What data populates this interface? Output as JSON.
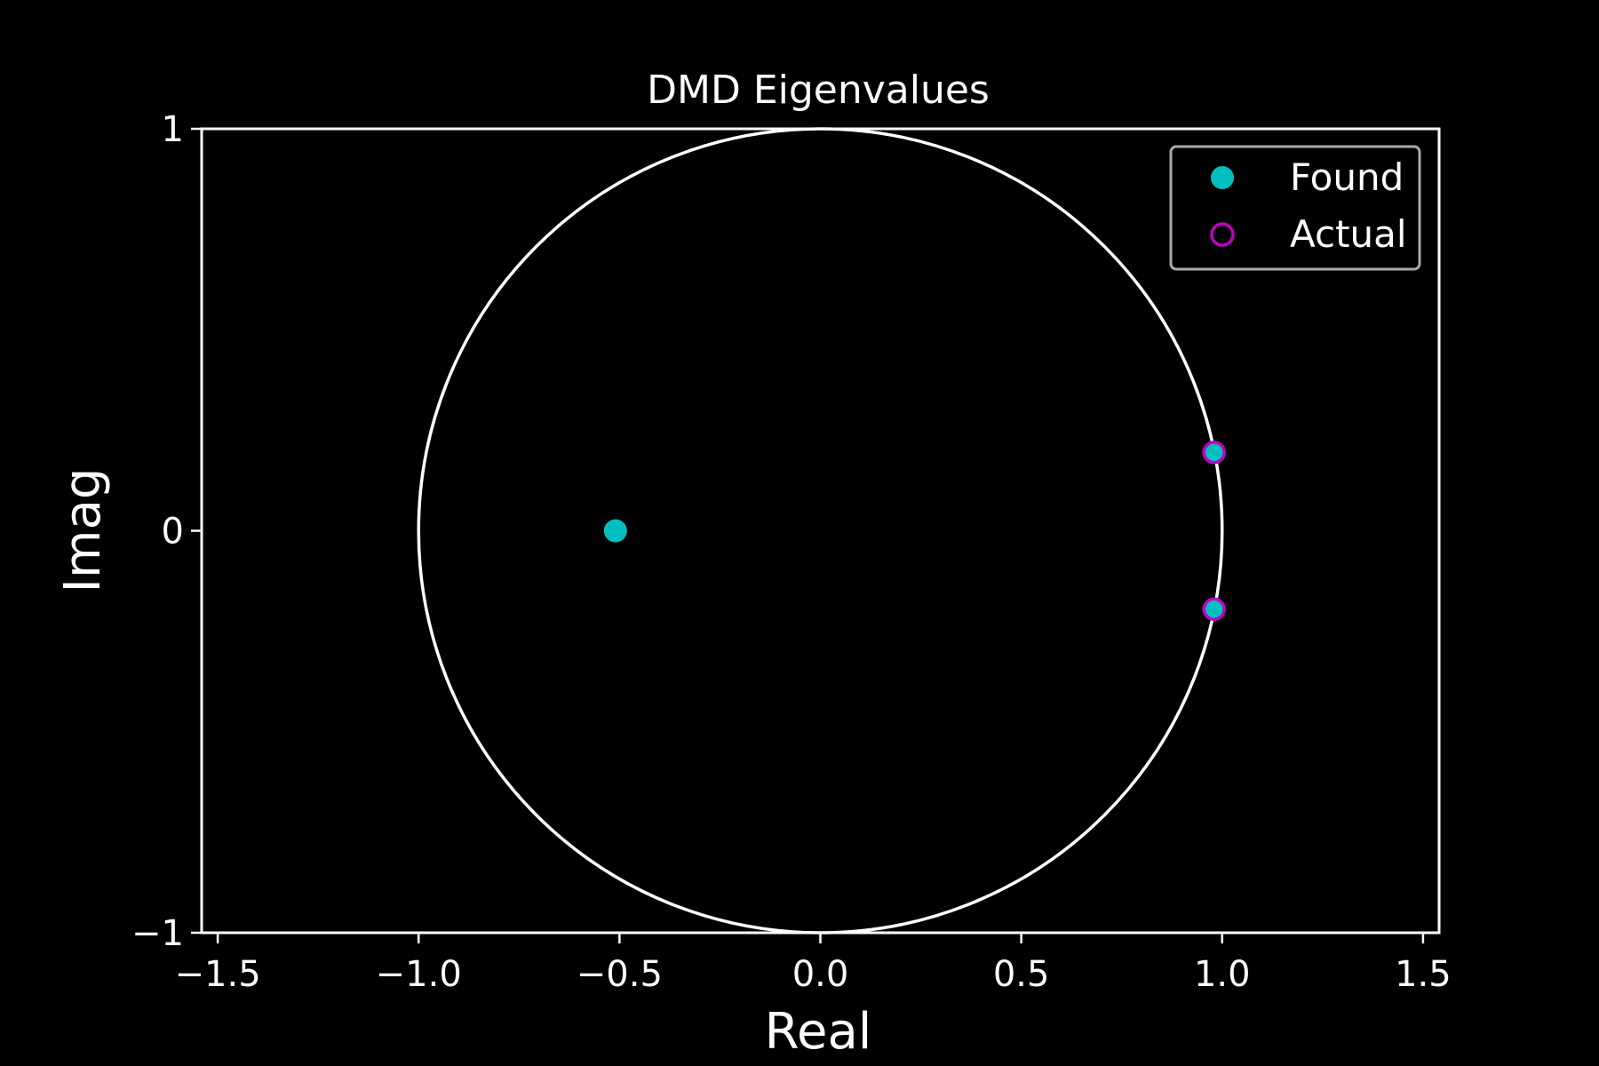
{
  "chart_data": {
    "type": "scatter",
    "title": "DMD Eigenvalues",
    "xlabel": "Real",
    "ylabel": "Imag",
    "xlim": [
      -1.54,
      1.54
    ],
    "ylim": [
      -1,
      1
    ],
    "x_ticks": [
      -1.5,
      -1.0,
      -0.5,
      0.0,
      0.5,
      1.0,
      1.5
    ],
    "x_tick_labels": [
      "−1.5",
      "−1.0",
      "−0.5",
      "0.0",
      "0.5",
      "1.0",
      "1.5"
    ],
    "y_ticks": [
      -1,
      0,
      1
    ],
    "y_tick_labels": [
      "−1",
      "0",
      "1"
    ],
    "grid": false,
    "legend_position": "top-right",
    "reference_curve": "unit circle",
    "series": [
      {
        "name": "Found",
        "marker": "filled-circle",
        "color": "#00bfbf",
        "points": [
          {
            "x": -0.51,
            "y": 0.0
          },
          {
            "x": 0.98,
            "y": 0.195
          },
          {
            "x": 0.98,
            "y": -0.195
          }
        ]
      },
      {
        "name": "Actual",
        "marker": "open-circle",
        "color": "#bf00bf",
        "points": [
          {
            "x": 0.98,
            "y": 0.195
          },
          {
            "x": 0.98,
            "y": -0.195
          }
        ]
      }
    ]
  },
  "colors": {
    "background": "#000000",
    "foreground": "#ffffff",
    "legend_border": "#aaaaaa"
  }
}
